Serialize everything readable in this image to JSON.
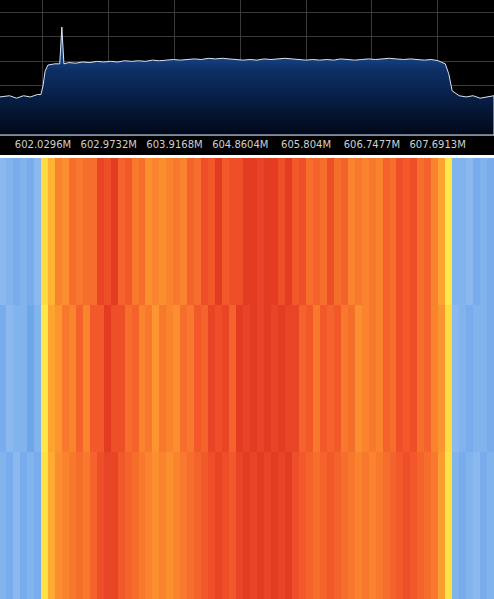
{
  "chart_data": [
    {
      "type": "area",
      "x": [
        601.41,
        601.55,
        601.65,
        601.75,
        601.85,
        601.95,
        602.0,
        602.03,
        602.06,
        602.1,
        602.2,
        602.27,
        602.3,
        602.33,
        602.4,
        602.5,
        602.6,
        602.7,
        602.8,
        602.9,
        603.0,
        603.1,
        603.2,
        603.3,
        603.4,
        603.5,
        603.6,
        603.7,
        603.8,
        603.9,
        604.0,
        604.1,
        604.2,
        604.3,
        604.4,
        604.5,
        604.6,
        604.7,
        604.8,
        604.9,
        605.0,
        605.1,
        605.2,
        605.3,
        605.4,
        605.5,
        605.6,
        605.7,
        605.8,
        605.9,
        606.0,
        606.1,
        606.2,
        606.3,
        606.4,
        606.5,
        606.6,
        606.7,
        606.8,
        606.9,
        607.0,
        607.1,
        607.2,
        607.3,
        607.4,
        607.5,
        607.6,
        607.7,
        607.8,
        607.85,
        607.9,
        608.0,
        608.1,
        608.2,
        608.3,
        608.4,
        608.5
      ],
      "values": [
        -99,
        -98,
        -100,
        -98,
        -99,
        -97,
        -97,
        -90,
        -78,
        -73,
        -72,
        -72,
        -42,
        -72,
        -71,
        -71.5,
        -70.5,
        -71,
        -70,
        -70.5,
        -70,
        -70.5,
        -69.5,
        -70,
        -69.5,
        -70,
        -69,
        -69.5,
        -69,
        -68.5,
        -69,
        -68.5,
        -68,
        -68.5,
        -67.5,
        -68,
        -67.5,
        -68,
        -68.5,
        -69,
        -68.5,
        -69,
        -68,
        -68.5,
        -68,
        -67.5,
        -68,
        -68.5,
        -69,
        -68.5,
        -69,
        -68.5,
        -69,
        -68,
        -68.5,
        -69,
        -68.5,
        -68,
        -68.5,
        -68,
        -67.5,
        -68,
        -68.5,
        -68,
        -68.5,
        -69,
        -68.5,
        -69.5,
        -72,
        -80,
        -94,
        -98,
        -99,
        -98,
        -100,
        -99,
        -98
      ],
      "color": "#2a6fc4",
      "xlim": [
        601.413,
        608.5
      ],
      "xticks": [
        {
          "value": 602.0296,
          "label": "602.0296M"
        },
        {
          "value": 602.9732,
          "label": "602.9732M"
        },
        {
          "value": 603.9168,
          "label": "603.9168M"
        },
        {
          "value": 604.8604,
          "label": "604.8604M"
        },
        {
          "value": 605.804,
          "label": "605.804M"
        },
        {
          "value": 606.7477,
          "label": "606.7477M"
        },
        {
          "value": 607.6913,
          "label": "607.6913M"
        }
      ],
      "ylim": [
        -130,
        -20
      ],
      "yticks": [
        -110,
        -90,
        -70,
        -50,
        -30
      ],
      "grid": true,
      "tick_labels": "x"
    },
    {
      "type": "heatmap",
      "x": [
        601.45,
        601.55,
        601.65,
        601.75,
        601.85,
        601.95,
        602.05,
        602.15,
        602.25,
        602.35,
        602.45,
        602.55,
        602.65,
        602.75,
        602.85,
        602.95,
        603.05,
        603.15,
        603.25,
        603.35,
        603.45,
        603.55,
        603.65,
        603.75,
        603.85,
        603.95,
        604.05,
        604.15,
        604.25,
        604.35,
        604.45,
        604.55,
        604.65,
        604.75,
        604.85,
        604.95,
        605.05,
        605.15,
        605.25,
        605.35,
        605.45,
        605.55,
        605.65,
        605.75,
        605.85,
        605.95,
        606.05,
        606.15,
        606.25,
        606.35,
        606.45,
        606.55,
        606.65,
        606.75,
        606.85,
        606.95,
        607.05,
        607.15,
        607.25,
        607.35,
        607.45,
        607.55,
        607.65,
        607.75,
        607.85,
        607.95,
        608.05,
        608.15,
        608.25,
        608.35,
        608.45
      ],
      "cells": [
        [
          -98,
          -99,
          -97,
          -99,
          -98,
          -99,
          -80,
          -73,
          -71,
          -70.5,
          -70,
          -69.5,
          -70,
          -69,
          -68,
          -67.5,
          -67.5,
          -68.5,
          -69,
          -69.5,
          -70,
          -70.5,
          -71,
          -70.5,
          -71,
          -70.5,
          -70,
          -69.5,
          -69,
          -68.5,
          -68,
          -67.5,
          -68,
          -68.5,
          -67.5,
          -67,
          -67.5,
          -67,
          -67.5,
          -67,
          -67.5,
          -67,
          -68,
          -68.5,
          -69,
          -69.5,
          -69,
          -68.5,
          -69,
          -69.5,
          -70,
          -70.5,
          -70,
          -70.5,
          -70,
          -69.5,
          -69,
          -68.5,
          -68,
          -68.5,
          -69,
          -69.5,
          -70,
          -72,
          -80,
          -98,
          -99,
          -98,
          -97,
          -99,
          -98
        ],
        [
          -99,
          -97,
          -98,
          -98,
          -100,
          -98,
          -81,
          -72.5,
          -71.5,
          -70,
          -70.5,
          -69,
          -70.5,
          -68.5,
          -68.5,
          -67,
          -68,
          -68,
          -69.5,
          -69,
          -70.5,
          -70,
          -71.5,
          -70,
          -70.5,
          -71,
          -69.5,
          -70,
          -68.5,
          -69,
          -67.5,
          -68,
          -67.5,
          -69,
          -67,
          -67.5,
          -67,
          -67.5,
          -67,
          -67.5,
          -67,
          -67.5,
          -67.5,
          -69,
          -68.5,
          -70,
          -68.5,
          -69,
          -68.5,
          -70,
          -69.5,
          -71,
          -70.5,
          -70,
          -70.5,
          -69,
          -69.5,
          -68,
          -68.5,
          -68,
          -69.5,
          -69,
          -70.5,
          -71.5,
          -79,
          -97,
          -98,
          -99,
          -98,
          -98,
          -99
        ],
        [
          -97,
          -98,
          -99,
          -98,
          -99,
          -97,
          -79,
          -73.5,
          -70.5,
          -71,
          -69.5,
          -70,
          -69.5,
          -69.5,
          -67.5,
          -68,
          -67,
          -69,
          -68.5,
          -70,
          -69.5,
          -71,
          -70.5,
          -71,
          -70.5,
          -70,
          -70.5,
          -69,
          -69.5,
          -68,
          -68.5,
          -67,
          -68.5,
          -68,
          -68,
          -67,
          -67,
          -67.5,
          -67,
          -67,
          -68,
          -67,
          -68.5,
          -68,
          -69.5,
          -69,
          -69.5,
          -68,
          -69.5,
          -69,
          -70.5,
          -70,
          -70.5,
          -70,
          -70.5,
          -69,
          -69.5,
          -68,
          -68.5,
          -68,
          -69.5,
          -69,
          -70.5,
          -72.5,
          -81,
          -98,
          -98,
          -97,
          -99,
          -98,
          -99
        ]
      ],
      "zlim": [
        -100,
        -66
      ],
      "xlim": [
        601.413,
        608.5
      ],
      "tick_labels": false
    }
  ]
}
